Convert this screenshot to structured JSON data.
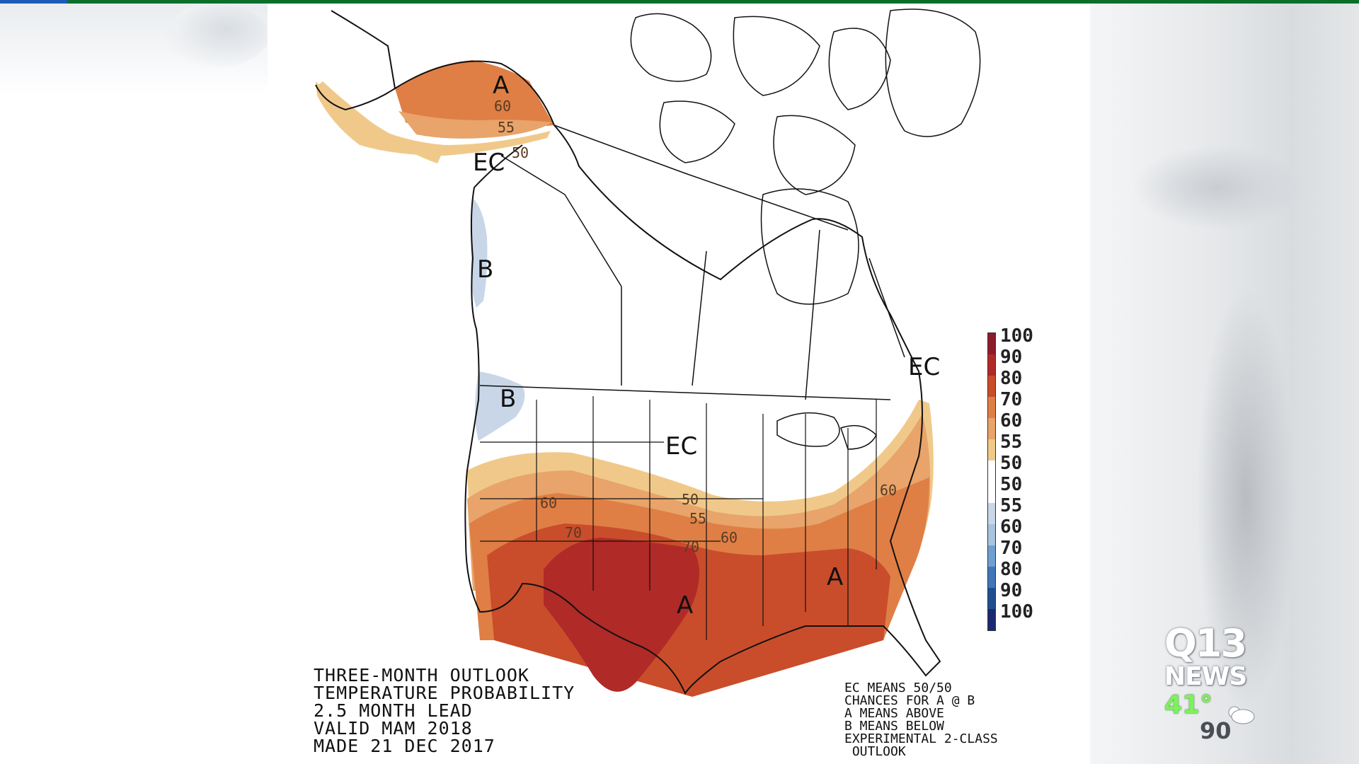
{
  "map": {
    "region_labels": {
      "alaska": "A",
      "alaska_ec": "EC",
      "bc_b": "B",
      "or_b": "B",
      "plains_ec": "EC",
      "maine_ec": "EC",
      "southwest_a": "A",
      "southeast_a": "A"
    },
    "contour_labels": {
      "ak60": "60",
      "ak55": "55",
      "ak50": "50",
      "sw60": "60",
      "sw70": "70",
      "p50": "50",
      "p55": "55",
      "p60": "60",
      "p70": "70",
      "e60": "60"
    },
    "colors": {
      "above_50": "#f0c98a",
      "above_55": "#e8a46a",
      "above_60": "#df7f45",
      "above_70": "#c94d2b",
      "above_80": "#b02a27",
      "below_55": "#c8d6e8",
      "below_60": "#a9c3df"
    }
  },
  "legend": {
    "labels": [
      "100",
      "90",
      "80",
      "70",
      "60",
      "55",
      "50",
      "50",
      "55",
      "60",
      "70",
      "80",
      "90",
      "100"
    ],
    "colors": [
      "#8e1b2a",
      "#b02a27",
      "#c94d2b",
      "#df7f45",
      "#e8a46a",
      "#f0c98a",
      "#ffffff",
      "#ffffff",
      "#c8d6e8",
      "#a9c3df",
      "#6f9fd0",
      "#3f77b8",
      "#214f8e",
      "#1b2a6e"
    ]
  },
  "caption": {
    "line1": "THREE-MONTH OUTLOOK",
    "line2": "TEMPERATURE PROBABILITY",
    "line3": "2.5 MONTH LEAD",
    "line4": "VALID MAM 2018",
    "line5": "MADE 21 DEC 2017"
  },
  "notes": {
    "line1": "EC MEANS 50/50",
    "line2": "CHANCES FOR A @ B",
    "line3": "A MEANS ABOVE",
    "line4": "B MEANS BELOW",
    "line5": "EXPERIMENTAL 2-CLASS",
    "line6": " OUTLOOK"
  },
  "branding": {
    "logo_line1": "Q13",
    "logo_line2": "NEWS",
    "temperature": "41°",
    "weather_icon": "partly-cloudy-icon",
    "below_text": "90"
  }
}
